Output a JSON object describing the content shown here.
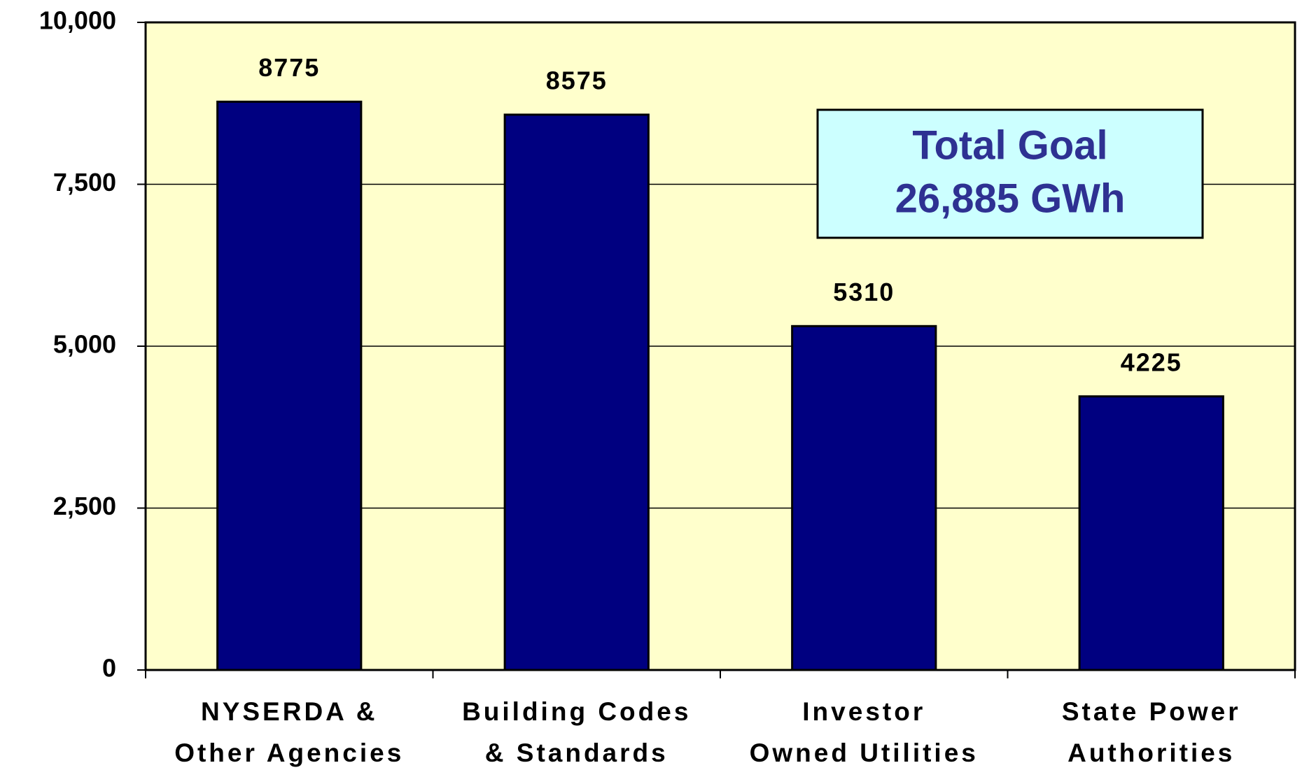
{
  "chart_data": {
    "type": "bar",
    "categories": [
      [
        "NYSERDA &",
        "Other Agencies"
      ],
      [
        "Building Codes",
        "& Standards"
      ],
      [
        "Investor",
        "Owned Utilities"
      ],
      [
        "State Power",
        "Authorities"
      ]
    ],
    "values": [
      8775,
      8575,
      5310,
      4225
    ],
    "color": "#000080",
    "plot_background": "#ffffcc",
    "ylim": [
      0,
      10000
    ],
    "yticks": [
      0,
      {
        "value": 2500,
        "label": "2,500"
      },
      {
        "value": 5000,
        "label": "5,000"
      },
      {
        "value": 7500,
        "label": "7,500"
      },
      {
        "value": 10000,
        "label": "10,000"
      }
    ],
    "grid": true,
    "annotation": [
      "Total Goal",
      "26,885 GWh"
    ]
  }
}
